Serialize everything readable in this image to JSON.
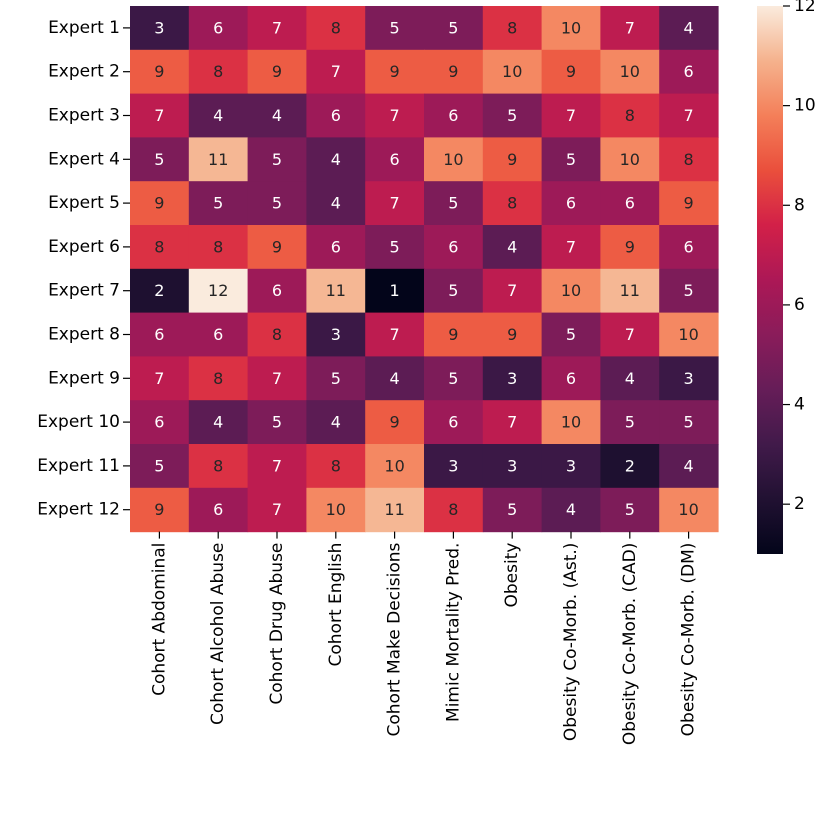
{
  "chart_data": {
    "type": "heatmap",
    "title": "",
    "xlabel": "",
    "ylabel": "",
    "rows": [
      "Expert 1",
      "Expert 2",
      "Expert 3",
      "Expert 4",
      "Expert 5",
      "Expert 6",
      "Expert 7",
      "Expert 8",
      "Expert 9",
      "Expert 10",
      "Expert 11",
      "Expert 12"
    ],
    "columns": [
      "Cohort Abdominal",
      "Cohort Alcohol Abuse",
      "Cohort Drug Abuse",
      "Cohort English",
      "Cohort Make Decisions",
      "Mimic Mortality Pred.",
      "Obesity",
      "Obesity Co-Morb. (Ast.)",
      "Obesity Co-Morb. (CAD)",
      "Obesity Co-Morb. (DM)"
    ],
    "values": [
      [
        3,
        6,
        7,
        8,
        5,
        5,
        8,
        10,
        7,
        4
      ],
      [
        9,
        8,
        9,
        7,
        9,
        9,
        10,
        9,
        10,
        6
      ],
      [
        7,
        4,
        4,
        6,
        7,
        6,
        5,
        7,
        8,
        7
      ],
      [
        5,
        11,
        5,
        4,
        6,
        10,
        9,
        5,
        10,
        8
      ],
      [
        9,
        5,
        5,
        4,
        7,
        5,
        8,
        6,
        6,
        9
      ],
      [
        8,
        8,
        9,
        6,
        5,
        6,
        4,
        7,
        9,
        6
      ],
      [
        2,
        12,
        6,
        11,
        1,
        5,
        7,
        10,
        11,
        5
      ],
      [
        6,
        6,
        8,
        3,
        7,
        9,
        9,
        5,
        7,
        10
      ],
      [
        7,
        8,
        7,
        5,
        4,
        5,
        3,
        6,
        4,
        3
      ],
      [
        6,
        4,
        5,
        4,
        9,
        6,
        7,
        10,
        5,
        5
      ],
      [
        5,
        8,
        7,
        8,
        10,
        3,
        3,
        3,
        2,
        4
      ],
      [
        9,
        6,
        7,
        10,
        11,
        8,
        5,
        4,
        5,
        10
      ]
    ],
    "colorbar": {
      "min": 1,
      "max": 12,
      "ticks": [
        2,
        4,
        6,
        8,
        10,
        12
      ],
      "colormap": "rocket"
    }
  }
}
